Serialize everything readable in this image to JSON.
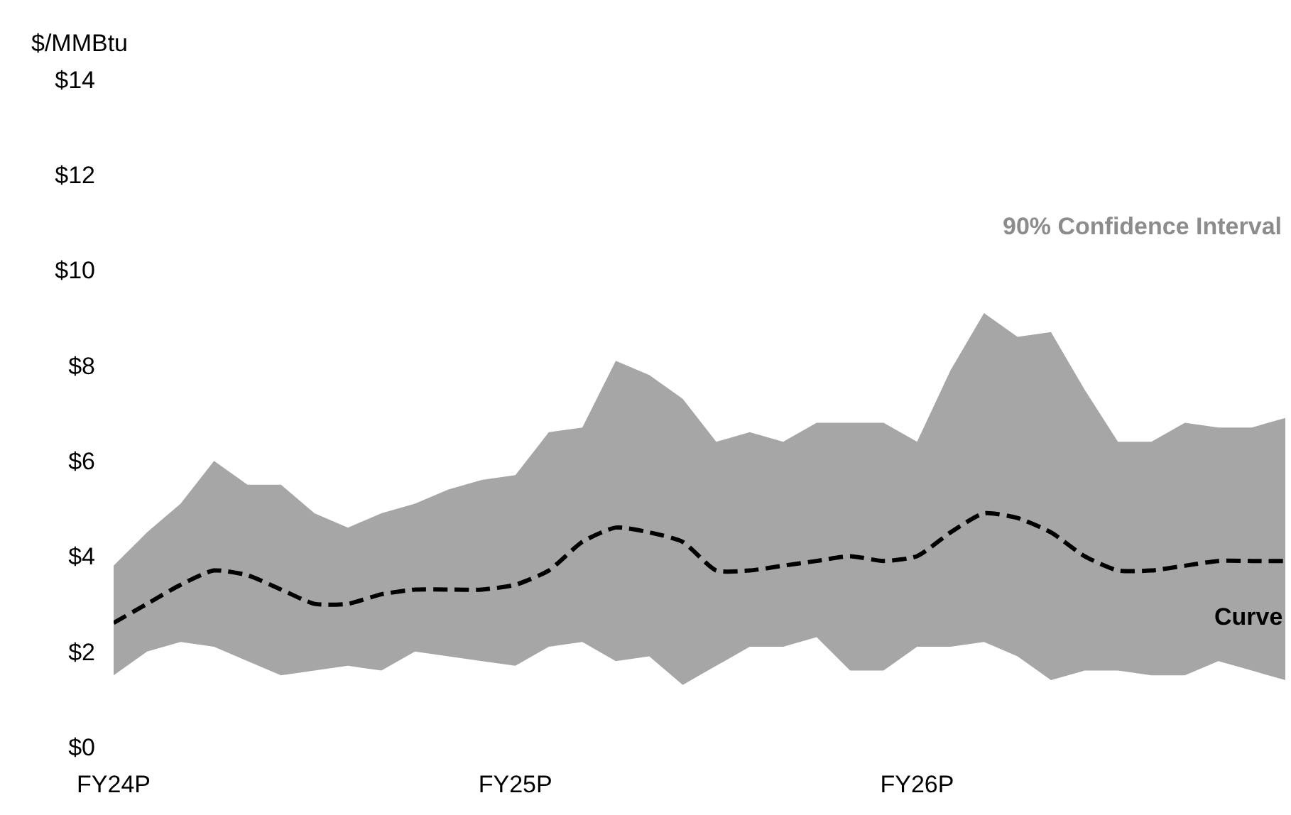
{
  "chart_data": {
    "type": "line",
    "ylabel": "$/MMBtu",
    "annotations": [
      "90% Confidence Interval"
    ],
    "categories": [
      "FY24P",
      null,
      null,
      null,
      null,
      null,
      null,
      null,
      null,
      null,
      null,
      null,
      "FY25P",
      null,
      null,
      null,
      null,
      null,
      null,
      null,
      null,
      null,
      null,
      null,
      "FY26P",
      null,
      null,
      null,
      null,
      null,
      null,
      null,
      null,
      null,
      null,
      null
    ],
    "series": [
      {
        "name": "Curve",
        "color": "#000000",
        "line_style": "dashed",
        "values": [
          2.6,
          3.0,
          3.4,
          3.7,
          3.6,
          3.3,
          3.0,
          3.0,
          3.2,
          3.3,
          3.3,
          3.3,
          3.4,
          3.7,
          4.3,
          4.6,
          4.5,
          4.3,
          3.7,
          3.7,
          3.8,
          3.9,
          4.0,
          3.9,
          4.0,
          4.5,
          4.9,
          4.8,
          4.5,
          4.0,
          3.7,
          3.7,
          3.8,
          3.9,
          3.9,
          3.9
        ],
        "lower": [
          1.5,
          2.0,
          2.2,
          2.1,
          1.8,
          1.5,
          1.6,
          1.7,
          1.6,
          2.0,
          1.9,
          1.8,
          1.7,
          2.1,
          2.2,
          1.8,
          1.9,
          1.3,
          1.7,
          2.1,
          2.1,
          2.3,
          1.6,
          1.6,
          2.1,
          2.1,
          2.2,
          1.9,
          1.4,
          1.6,
          1.6,
          1.5,
          1.5,
          1.8,
          1.6,
          1.4
        ],
        "upper": [
          3.8,
          4.5,
          5.1,
          6.0,
          5.5,
          5.5,
          4.9,
          4.6,
          4.9,
          5.1,
          5.4,
          5.6,
          5.7,
          6.6,
          6.7,
          8.1,
          7.8,
          7.3,
          6.4,
          6.6,
          6.4,
          6.8,
          6.8,
          6.8,
          6.4,
          7.9,
          9.1,
          8.6,
          8.7,
          7.5,
          6.4,
          6.4,
          6.8,
          6.7,
          6.7,
          6.9
        ]
      }
    ],
    "ylim": [
      0,
      14
    ],
    "yticks": [
      {
        "value": 0,
        "label": "$0"
      },
      {
        "value": 2,
        "label": "$2"
      },
      {
        "value": 4,
        "label": "$4"
      },
      {
        "value": 6,
        "label": "$6"
      },
      {
        "value": 8,
        "label": "$8"
      },
      {
        "value": 10,
        "label": "$10"
      },
      {
        "value": 12,
        "label": "$12"
      },
      {
        "value": 14,
        "label": "$14"
      }
    ],
    "grid": false,
    "legend": false,
    "marker": "none"
  }
}
